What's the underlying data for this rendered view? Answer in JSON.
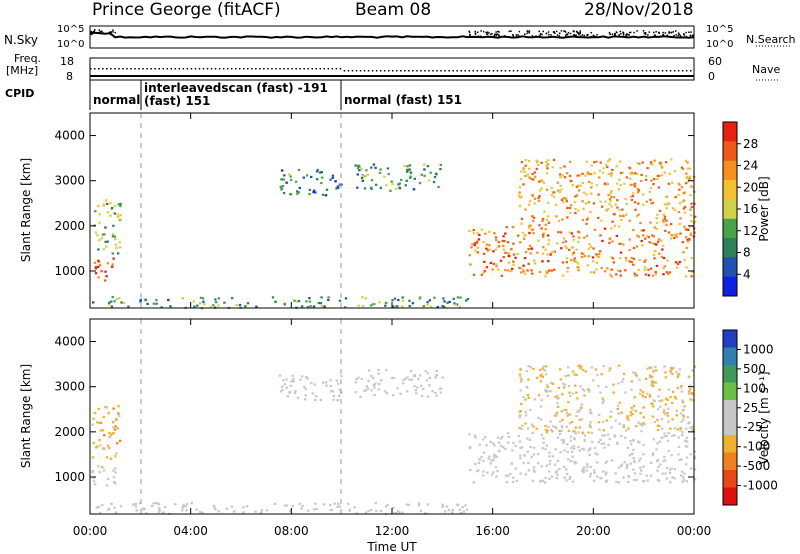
{
  "header": {
    "station": "Prince George (fitACF)",
    "beam": "Beam 08",
    "date": "28/Nov/2018"
  },
  "noise_panel": {
    "left_label": "N.Sky",
    "right_label": "N.Search",
    "left_ticks": [
      "10^5",
      "10^0"
    ],
    "right_ticks": [
      "10^5",
      "10^0"
    ]
  },
  "freq_panel": {
    "left_label_1": "Freq.",
    "left_label_2": "[MHz]",
    "right_label": "Nave",
    "left_ticks": [
      "18",
      "8"
    ],
    "right_ticks": [
      "60",
      "0"
    ]
  },
  "cpid_panel": {
    "label": "CPID",
    "modes": [
      {
        "name": "normal",
        "start": 0.0
      },
      {
        "name": "interleavedscan (fast) -191",
        "sub": "(fast) 151",
        "start": 1.9
      },
      {
        "name": "normal (fast) 151",
        "start": 10.0
      }
    ]
  },
  "x_axis": {
    "label": "Time UT",
    "ticks": [
      "00:00",
      "04:00",
      "08:00",
      "12:00",
      "16:00",
      "20:00",
      "00:00"
    ]
  },
  "power_panel": {
    "ylabel": "Slant Range [km]",
    "yticks": [
      "1000",
      "2000",
      "3000",
      "4000"
    ],
    "colorbar_label": "Power [dB]",
    "colorbar_ticks": [
      "4",
      "8",
      "12",
      "16",
      "20",
      "24",
      "28"
    ],
    "colors": [
      "#1020e0",
      "#2050b0",
      "#2f7f5a",
      "#4aa34a",
      "#cfd34a",
      "#f5c030",
      "#f59020",
      "#ef5a1a",
      "#e82010"
    ]
  },
  "velocity_panel": {
    "ylabel": "Slant Range [km]",
    "yticks": [
      "1000",
      "2000",
      "3000",
      "4000"
    ],
    "colorbar_label": "Velocity [m s⁻¹]",
    "colorbar_ticks": [
      "1000",
      "500",
      "100",
      "25",
      "-25",
      "-100",
      "-500",
      "-1000"
    ],
    "colors": [
      "#2040c0",
      "#2f7fb0",
      "#3f9a5a",
      "#6cc04a",
      "#c8c8c8",
      "#c8c8c8",
      "#f0b030",
      "#f08020",
      "#e84818",
      "#e01010"
    ]
  },
  "chart_data": {
    "type": "heatmap",
    "x_range_hours": [
      0,
      24
    ],
    "y_range_km": [
      180,
      4500
    ],
    "series": [
      {
        "name": "Power [dB]",
        "clim": [
          0,
          30
        ]
      },
      {
        "name": "Velocity [m s⁻¹]",
        "clim": [
          -1000,
          1000
        ]
      }
    ],
    "regions": [
      {
        "t": [
          0.0,
          1.0
        ],
        "r": [
          800,
          1300
        ],
        "power": 26,
        "velocity": -100
      },
      {
        "t": [
          0.0,
          1.2
        ],
        "r": [
          1400,
          2600
        ],
        "power": 14,
        "velocity": -300
      },
      {
        "t": [
          7.5,
          10.0
        ],
        "r": [
          2700,
          3300
        ],
        "power": 8,
        "velocity": 0
      },
      {
        "t": [
          10.5,
          14.0
        ],
        "r": [
          2800,
          3400
        ],
        "power": 10,
        "velocity": 0
      },
      {
        "t": [
          15.0,
          24.0
        ],
        "r": [
          900,
          2000
        ],
        "power": 22,
        "velocity": -20
      },
      {
        "t": [
          17.0,
          24.0
        ],
        "r": [
          2000,
          3500
        ],
        "power": 20,
        "velocity": -200
      },
      {
        "t": [
          0.0,
          15.0
        ],
        "r": [
          200,
          450
        ],
        "power": 10,
        "velocity": -40
      }
    ]
  }
}
